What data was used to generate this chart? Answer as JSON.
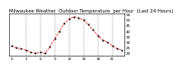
{
  "title": "Milwaukee Weather  Outdoor Temperature  per Hour  (Last 24 Hours)",
  "hours": [
    0,
    1,
    2,
    3,
    4,
    5,
    6,
    7,
    8,
    9,
    10,
    11,
    12,
    13,
    14,
    15,
    16,
    17,
    18,
    19,
    20,
    21,
    22,
    23
  ],
  "temps": [
    27,
    25,
    24,
    23,
    21,
    20,
    21,
    20,
    26,
    33,
    40,
    47,
    51,
    53,
    52,
    50,
    46,
    41,
    36,
    32,
    30,
    27,
    24,
    23
  ],
  "line_color": "#ff0000",
  "marker_color": "#000000",
  "marker_style": "s",
  "grid_color": "#666666",
  "bg_color": "#ffffff",
  "ylim": [
    18,
    56
  ],
  "yticks": [
    20,
    25,
    30,
    35,
    40,
    45,
    50,
    55
  ],
  "title_fontsize": 3.8,
  "tick_labelsize": 3.0,
  "grid_xticks": [
    3,
    6,
    9,
    12,
    15,
    18,
    21
  ]
}
